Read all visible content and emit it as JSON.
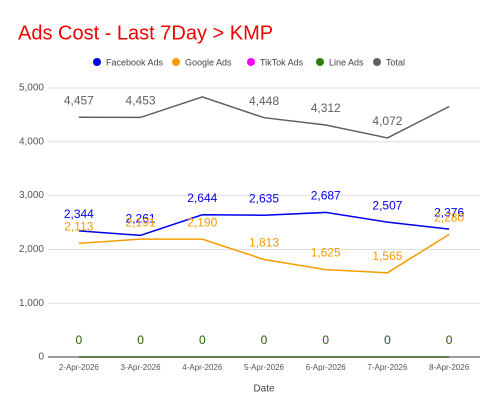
{
  "chart_data": {
    "type": "line",
    "title": "Ads Cost - Last 7Day > KMP",
    "x_label": "Date",
    "categories": [
      "2-Apr-2026",
      "3-Apr-2026",
      "4-Apr-2026",
      "5-Apr-2026",
      "6-Apr-2026",
      "7-Apr-2026",
      "8-Apr-2026"
    ],
    "series": [
      {
        "name": "Facebook Ads",
        "color": "#0000ee",
        "values": [
          2344,
          2261,
          2644,
          2635,
          2687,
          2507,
          2376
        ],
        "value_labels": [
          "2,344",
          "2,261",
          "2,644",
          "2,635",
          "2,687",
          "2,507",
          "2,376"
        ]
      },
      {
        "name": "Google Ads",
        "color": "#f59c00",
        "values": [
          2113,
          2191,
          2190,
          1813,
          1625,
          1565,
          2280
        ],
        "value_labels": [
          "2,113",
          "2,191",
          "2,190",
          "1,813",
          "1,625",
          "1,565",
          "2,280"
        ]
      },
      {
        "name": "TikTok Ads",
        "color": "#ff00ff",
        "values": [
          0,
          0,
          0,
          0,
          0,
          0,
          0
        ]
      },
      {
        "name": "Line Ads",
        "color": "#2e7d10",
        "values": [
          0,
          0,
          0,
          0,
          0,
          0,
          0
        ]
      },
      {
        "name": "Total",
        "color": "#606060",
        "values": [
          4457,
          4453,
          4834,
          4448,
          4312,
          4072,
          4656
        ],
        "value_labels": [
          "4,457",
          "4,453",
          null,
          "4,448",
          "4,312",
          "4,072",
          null
        ]
      }
    ],
    "ylim": [
      0,
      5000
    ],
    "yticks": [
      0,
      {
        "value": 1000,
        "label": "1,000"
      },
      {
        "value": 2000,
        "label": "2,000"
      },
      {
        "value": 3000,
        "label": "3,000"
      },
      {
        "value": 4000,
        "label": "4,000"
      },
      {
        "value": 5000,
        "label": "5,000"
      }
    ],
    "grid": true,
    "title_color": "#ee0000"
  }
}
